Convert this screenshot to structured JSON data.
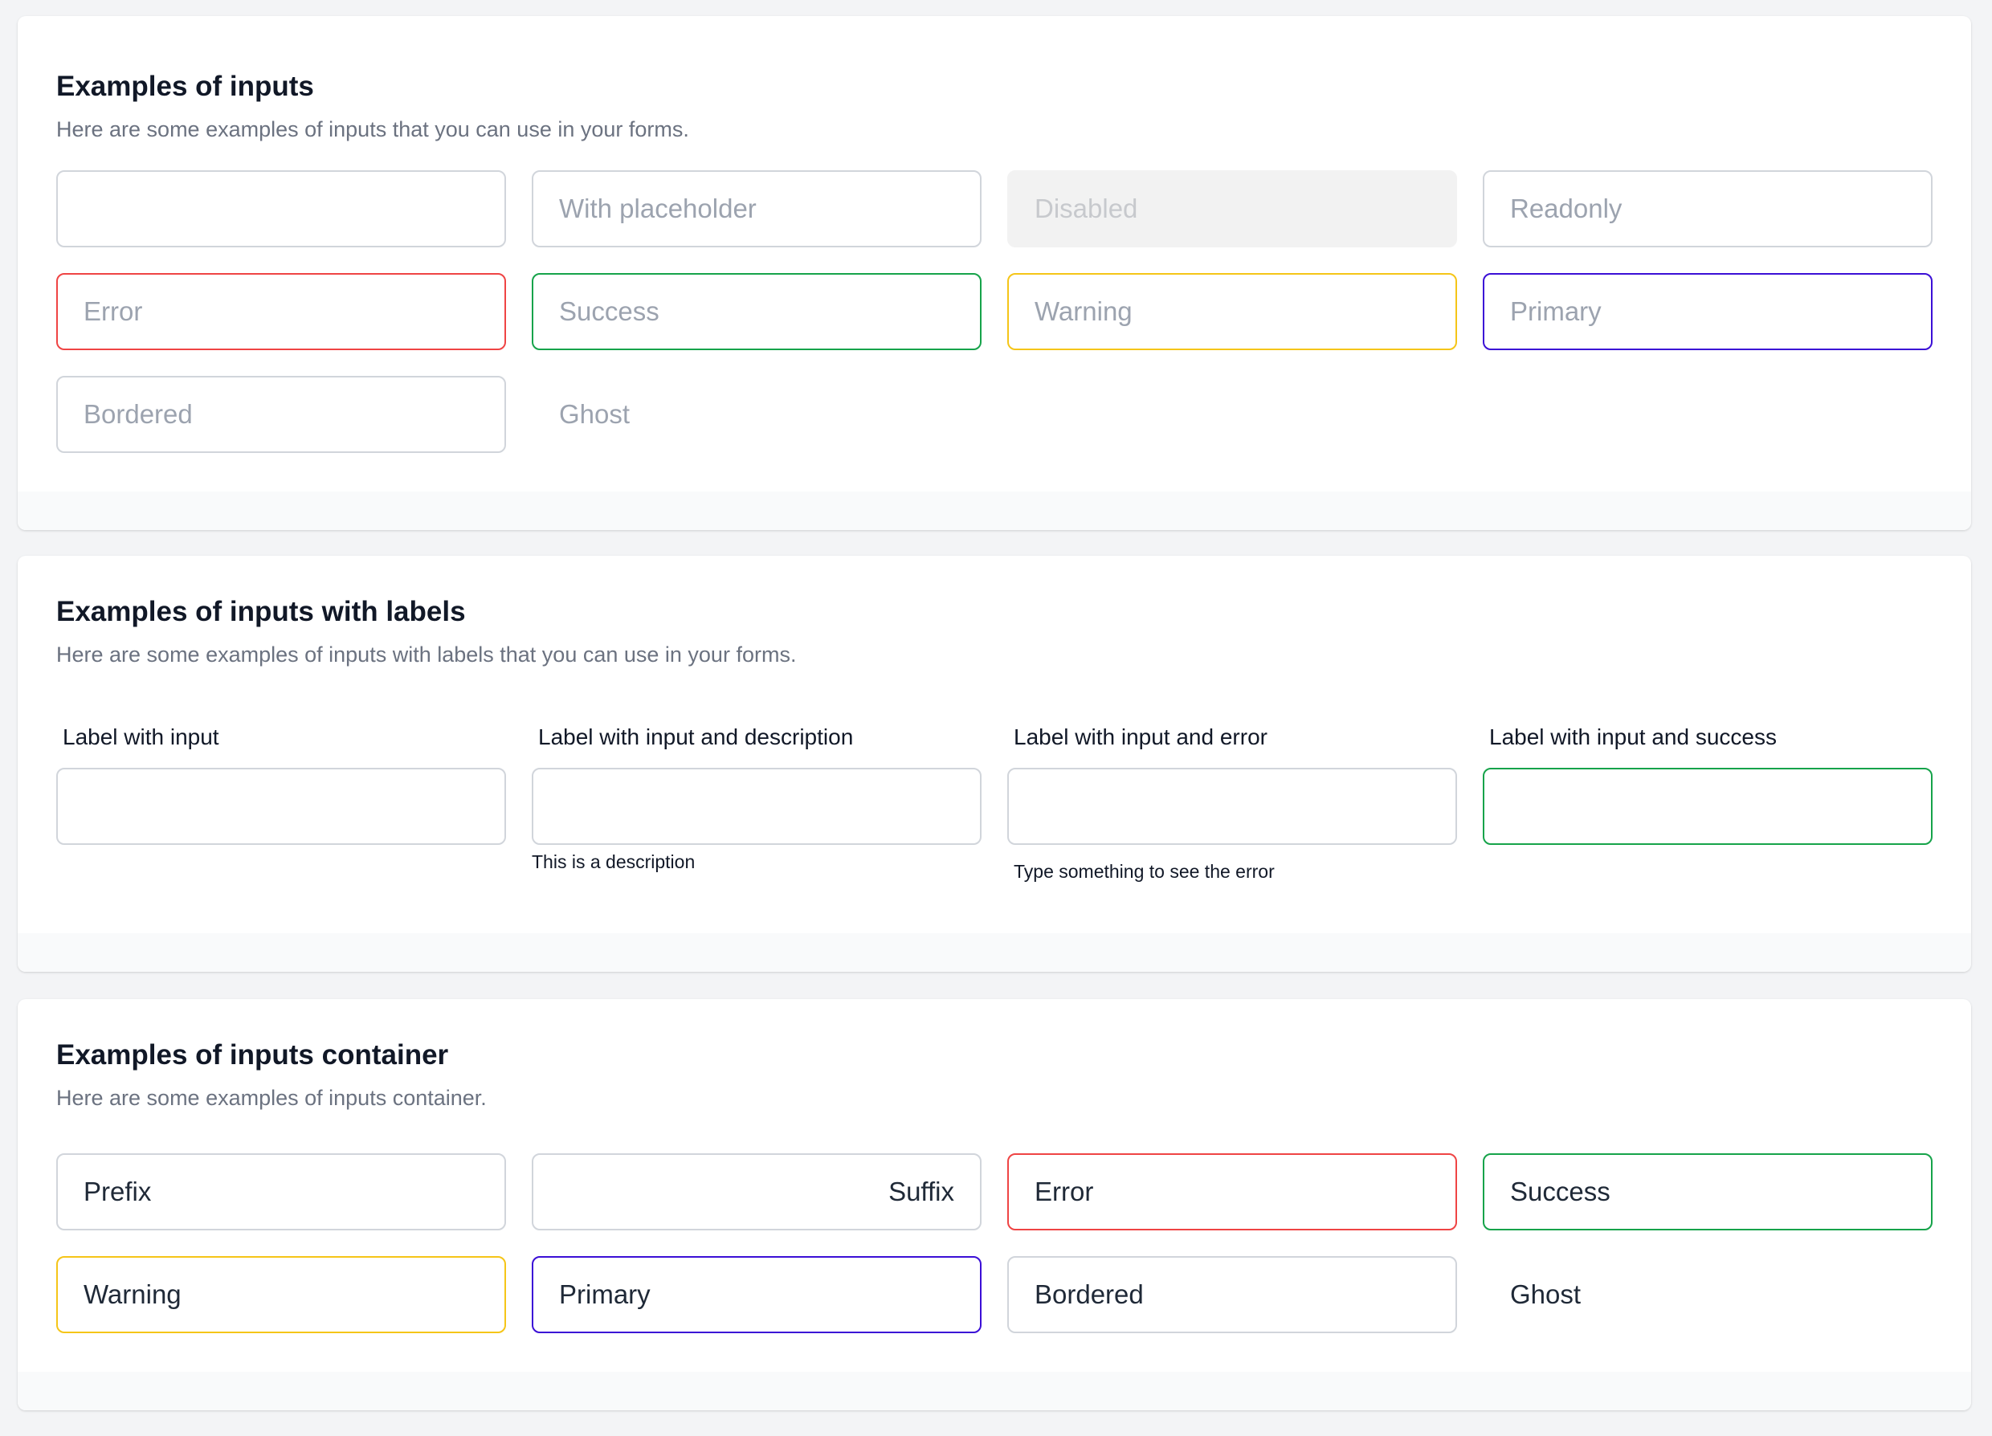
{
  "section1": {
    "title": "Examples of inputs",
    "description": "Here are some examples of inputs that you can use in your forms.",
    "inputs": [
      {
        "value": "",
        "placeholder": ""
      },
      {
        "placeholder": "With placeholder"
      },
      {
        "placeholder": "Disabled"
      },
      {
        "placeholder": "Readonly"
      },
      {
        "placeholder": "Error"
      },
      {
        "placeholder": "Success"
      },
      {
        "placeholder": "Warning"
      },
      {
        "placeholder": "Primary"
      },
      {
        "placeholder": "Bordered"
      },
      {
        "placeholder": "Ghost"
      }
    ]
  },
  "section2": {
    "title": "Examples of inputs with labels",
    "description": "Here are some examples of inputs with labels that you can use in your forms.",
    "fields": [
      {
        "label": "Label with input",
        "value": ""
      },
      {
        "label": "Label with input and description",
        "value": "",
        "helper": "This is a description"
      },
      {
        "label": "Label with input and error",
        "value": "",
        "helper": "Type something to see the error"
      },
      {
        "label": "Label with input and success",
        "value": ""
      }
    ]
  },
  "section3": {
    "title": "Examples of inputs container",
    "description": "Here are some examples of inputs container.",
    "containers": [
      {
        "text": "Prefix"
      },
      {
        "text": "Suffix"
      },
      {
        "text": "Error"
      },
      {
        "text": "Success"
      },
      {
        "text": "Warning"
      },
      {
        "text": "Primary"
      },
      {
        "text": "Bordered"
      },
      {
        "text": "Ghost"
      }
    ]
  },
  "colors": {
    "error": "#ef4444",
    "success": "#16a34a",
    "warning": "#f5c518",
    "primary": "#3b0fd6",
    "border": "#d1d5db"
  }
}
